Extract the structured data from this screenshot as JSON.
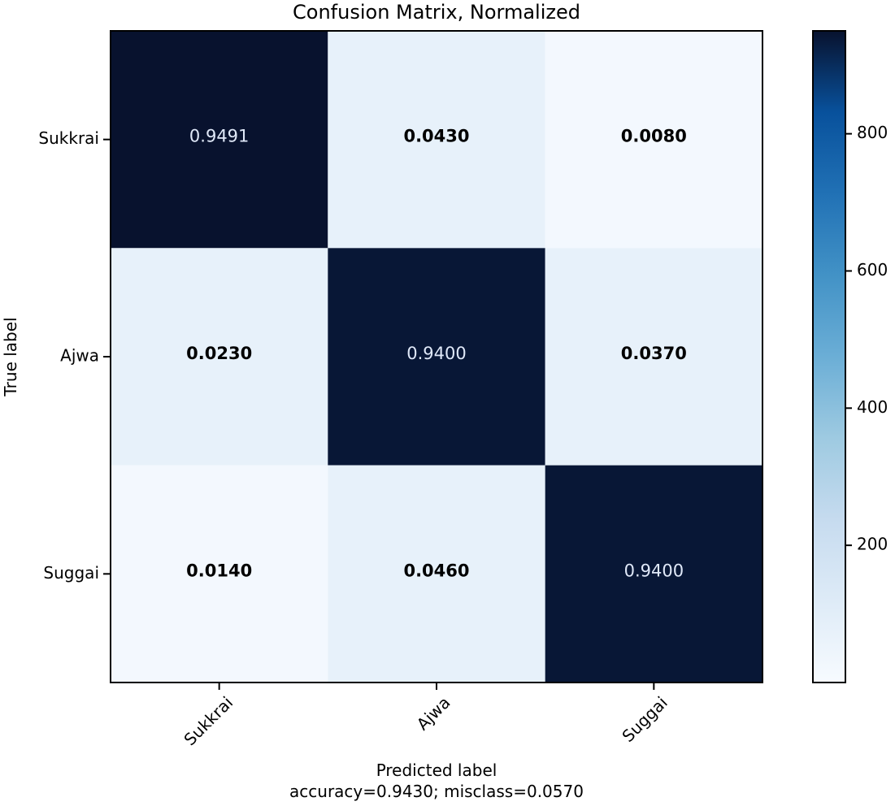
{
  "chart_data": {
    "type": "heatmap",
    "title": "Confusion Matrix, Normalized",
    "xlabel": "Predicted label",
    "xlabel_sub": "accuracy=0.9430; misclass=0.0570",
    "ylabel": "True label",
    "x_categories": [
      "Sukkrai",
      "Ajwa",
      "Suggai"
    ],
    "y_categories": [
      "Sukkrai",
      "Ajwa",
      "Suggai"
    ],
    "values": [
      [
        0.9491,
        0.043,
        0.008
      ],
      [
        0.023,
        0.94,
        0.037
      ],
      [
        0.014,
        0.046,
        0.94
      ]
    ],
    "value_labels": [
      [
        "0.9491",
        "0.0430",
        "0.0080"
      ],
      [
        "0.0230",
        "0.9400",
        "0.0370"
      ],
      [
        "0.0140",
        "0.0460",
        "0.9400"
      ]
    ],
    "colormap": "Blues",
    "colorbar": {
      "min": 0,
      "max": 950,
      "ticks": [
        200,
        400,
        600,
        800
      ],
      "tick_labels": [
        "200",
        "400",
        "600",
        "800"
      ]
    },
    "colors": {
      "low": "#f7fbff",
      "high": "#08122e"
    },
    "grid": false
  }
}
